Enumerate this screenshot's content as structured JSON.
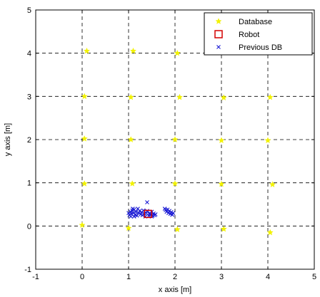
{
  "chart_data": {
    "type": "scatter",
    "xlabel": "x axis [m]",
    "ylabel": "y axis [m]",
    "xlim": [
      -1,
      5
    ],
    "ylim": [
      -1,
      5
    ],
    "x_ticks": [
      -1,
      0,
      1,
      2,
      3,
      4,
      5
    ],
    "y_ticks": [
      -1,
      0,
      1,
      2,
      3,
      4,
      5
    ],
    "grid": true,
    "legend_position": "top-right",
    "series": [
      {
        "name": "Database",
        "marker": "star",
        "color": "#f2f200",
        "points": [
          [
            0.1,
            4.05
          ],
          [
            1.1,
            4.05
          ],
          [
            2.05,
            4.0
          ],
          [
            0.05,
            3.0
          ],
          [
            1.05,
            2.98
          ],
          [
            2.1,
            2.98
          ],
          [
            3.05,
            2.97
          ],
          [
            4.05,
            2.98
          ],
          [
            0.05,
            2.02
          ],
          [
            1.05,
            2.0
          ],
          [
            2.0,
            2.0
          ],
          [
            3.0,
            1.98
          ],
          [
            4.0,
            1.98
          ],
          [
            0.05,
            0.98
          ],
          [
            1.08,
            0.98
          ],
          [
            2.0,
            0.98
          ],
          [
            3.0,
            0.97
          ],
          [
            4.1,
            0.96
          ],
          [
            0.0,
            0.02
          ],
          [
            1.0,
            -0.05
          ],
          [
            2.05,
            -0.08
          ],
          [
            3.05,
            -0.07
          ],
          [
            4.05,
            -0.15
          ]
        ]
      },
      {
        "name": "Robot",
        "marker": "square",
        "color": "#d40000",
        "points": [
          [
            1.42,
            0.28
          ]
        ]
      },
      {
        "name": "Previous DB",
        "marker": "x",
        "color": "#1a1ad4",
        "points": [
          [
            1.0,
            0.3
          ],
          [
            1.02,
            0.25
          ],
          [
            1.04,
            0.33
          ],
          [
            1.06,
            0.28
          ],
          [
            1.08,
            0.36
          ],
          [
            1.05,
            0.22
          ],
          [
            1.1,
            0.3
          ],
          [
            1.12,
            0.38
          ],
          [
            1.14,
            0.26
          ],
          [
            1.16,
            0.33
          ],
          [
            1.18,
            0.24
          ],
          [
            1.2,
            0.4
          ],
          [
            1.22,
            0.3
          ],
          [
            1.24,
            0.35
          ],
          [
            1.26,
            0.27
          ],
          [
            1.28,
            0.32
          ],
          [
            1.3,
            0.25
          ],
          [
            1.32,
            0.36
          ],
          [
            1.34,
            0.29
          ],
          [
            1.36,
            0.22
          ],
          [
            1.38,
            0.3
          ],
          [
            1.4,
            0.35
          ],
          [
            1.44,
            0.24
          ],
          [
            1.46,
            0.3
          ],
          [
            1.48,
            0.26
          ],
          [
            1.5,
            0.33
          ],
          [
            1.52,
            0.24
          ],
          [
            1.54,
            0.29
          ],
          [
            1.56,
            0.25
          ],
          [
            1.58,
            0.27
          ],
          [
            1.4,
            0.55
          ],
          [
            1.5,
            0.22
          ],
          [
            1.45,
            0.28
          ],
          [
            1.12,
            0.22
          ],
          [
            1.09,
            0.4
          ],
          [
            1.78,
            0.4
          ],
          [
            1.8,
            0.37
          ],
          [
            1.82,
            0.33
          ],
          [
            1.84,
            0.38
          ],
          [
            1.86,
            0.3
          ],
          [
            1.88,
            0.35
          ],
          [
            1.9,
            0.28
          ],
          [
            1.92,
            0.32
          ],
          [
            1.94,
            0.26
          ],
          [
            1.96,
            0.3
          ]
        ]
      }
    ]
  }
}
